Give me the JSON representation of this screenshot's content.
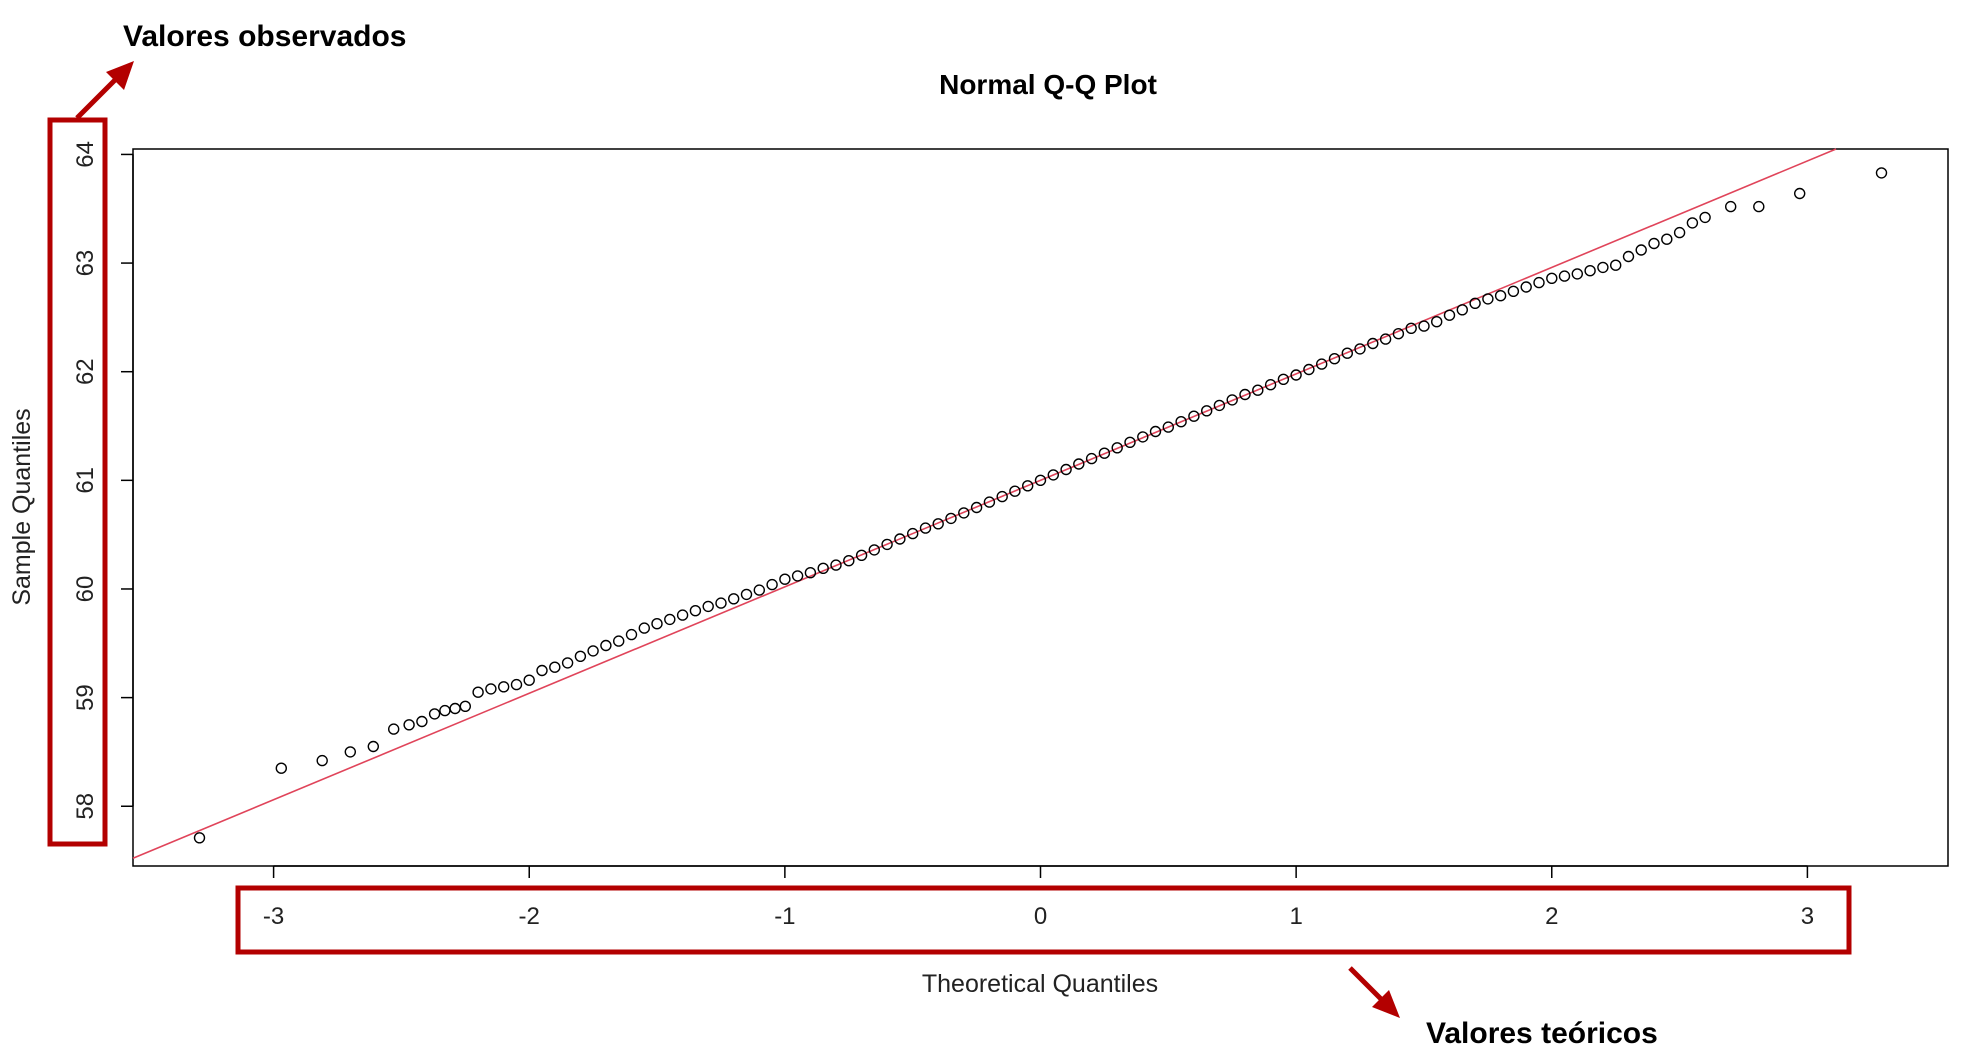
{
  "annotations": {
    "observed_label": "Valores observados",
    "theoretical_label": "Valores teóricos",
    "highlight_color": "#b30000"
  },
  "chart_data": {
    "type": "scatter",
    "title": "Normal Q-Q Plot",
    "xlabel": "Theoretical Quantiles",
    "ylabel": "Sample Quantiles",
    "xlim": [
      -3.55,
      3.55
    ],
    "ylim": [
      57.45,
      64.05
    ],
    "xticks": [
      -3,
      -2,
      -1,
      0,
      1,
      2,
      3
    ],
    "yticks": [
      58,
      59,
      60,
      61,
      62,
      63,
      64
    ],
    "xtick_labels": [
      "-3",
      "-2",
      "-1",
      "0",
      "1",
      "2",
      "3"
    ],
    "ytick_labels": [
      "58",
      "59",
      "60",
      "61",
      "62",
      "63",
      "64"
    ],
    "grid": false,
    "point_style": "open-circle",
    "point_color": "#000000",
    "line_color": "#e0445a",
    "reference_line": {
      "intercept": 61.0,
      "slope": 0.98
    },
    "sample_points": [
      [
        -3.29,
        57.71
      ],
      [
        -2.97,
        58.35
      ],
      [
        -2.81,
        58.42
      ],
      [
        -2.7,
        58.5
      ],
      [
        -2.61,
        58.55
      ],
      [
        -2.53,
        58.71
      ],
      [
        -2.47,
        58.75
      ],
      [
        -2.42,
        58.78
      ],
      [
        -2.37,
        58.85
      ],
      [
        -2.33,
        58.88
      ],
      [
        -2.29,
        58.9
      ],
      [
        -2.25,
        58.92
      ],
      [
        -2.2,
        59.05
      ],
      [
        -2.15,
        59.08
      ],
      [
        -2.1,
        59.1
      ],
      [
        -2.05,
        59.12
      ],
      [
        -2.0,
        59.16
      ],
      [
        -1.95,
        59.25
      ],
      [
        -1.9,
        59.28
      ],
      [
        -1.85,
        59.32
      ],
      [
        -1.8,
        59.38
      ],
      [
        -1.75,
        59.43
      ],
      [
        -1.7,
        59.48
      ],
      [
        -1.65,
        59.52
      ],
      [
        -1.6,
        59.58
      ],
      [
        -1.55,
        59.64
      ],
      [
        -1.5,
        59.68
      ],
      [
        -1.45,
        59.72
      ],
      [
        -1.4,
        59.76
      ],
      [
        -1.35,
        59.8
      ],
      [
        -1.3,
        59.84
      ],
      [
        -1.25,
        59.87
      ],
      [
        -1.2,
        59.91
      ],
      [
        -1.15,
        59.95
      ],
      [
        -1.1,
        59.99
      ],
      [
        -1.05,
        60.04
      ],
      [
        -1.0,
        60.09
      ],
      [
        -0.95,
        60.12
      ],
      [
        -0.9,
        60.15
      ],
      [
        -0.85,
        60.19
      ],
      [
        -0.8,
        60.22
      ],
      [
        -0.75,
        60.26
      ],
      [
        -0.7,
        60.31
      ],
      [
        -0.65,
        60.36
      ],
      [
        -0.6,
        60.41
      ],
      [
        -0.55,
        60.46
      ],
      [
        -0.5,
        60.51
      ],
      [
        -0.45,
        60.56
      ],
      [
        -0.4,
        60.6
      ],
      [
        -0.35,
        60.65
      ],
      [
        -0.3,
        60.7
      ],
      [
        -0.25,
        60.75
      ],
      [
        -0.2,
        60.8
      ],
      [
        -0.15,
        60.85
      ],
      [
        -0.1,
        60.9
      ],
      [
        -0.05,
        60.95
      ],
      [
        0.0,
        61.0
      ],
      [
        0.05,
        61.05
      ],
      [
        0.1,
        61.1
      ],
      [
        0.15,
        61.15
      ],
      [
        0.2,
        61.2
      ],
      [
        0.25,
        61.25
      ],
      [
        0.3,
        61.3
      ],
      [
        0.35,
        61.35
      ],
      [
        0.4,
        61.4
      ],
      [
        0.45,
        61.45
      ],
      [
        0.5,
        61.49
      ],
      [
        0.55,
        61.54
      ],
      [
        0.6,
        61.59
      ],
      [
        0.65,
        61.64
      ],
      [
        0.7,
        61.69
      ],
      [
        0.75,
        61.74
      ],
      [
        0.8,
        61.79
      ],
      [
        0.85,
        61.83
      ],
      [
        0.9,
        61.88
      ],
      [
        0.95,
        61.93
      ],
      [
        1.0,
        61.97
      ],
      [
        1.05,
        62.02
      ],
      [
        1.1,
        62.07
      ],
      [
        1.15,
        62.12
      ],
      [
        1.2,
        62.17
      ],
      [
        1.25,
        62.21
      ],
      [
        1.3,
        62.26
      ],
      [
        1.35,
        62.3
      ],
      [
        1.4,
        62.35
      ],
      [
        1.45,
        62.4
      ],
      [
        1.5,
        62.42
      ],
      [
        1.55,
        62.46
      ],
      [
        1.6,
        62.52
      ],
      [
        1.65,
        62.57
      ],
      [
        1.7,
        62.63
      ],
      [
        1.75,
        62.67
      ],
      [
        1.8,
        62.7
      ],
      [
        1.85,
        62.74
      ],
      [
        1.9,
        62.78
      ],
      [
        1.95,
        62.82
      ],
      [
        2.0,
        62.86
      ],
      [
        2.05,
        62.88
      ],
      [
        2.1,
        62.9
      ],
      [
        2.15,
        62.93
      ],
      [
        2.2,
        62.96
      ],
      [
        2.25,
        62.98
      ],
      [
        2.3,
        63.06
      ],
      [
        2.35,
        63.12
      ],
      [
        2.4,
        63.18
      ],
      [
        2.45,
        63.22
      ],
      [
        2.5,
        63.28
      ],
      [
        2.55,
        63.37
      ],
      [
        2.6,
        63.42
      ],
      [
        2.7,
        63.52
      ],
      [
        2.81,
        63.52
      ],
      [
        2.97,
        63.64
      ],
      [
        3.29,
        63.83
      ]
    ]
  }
}
